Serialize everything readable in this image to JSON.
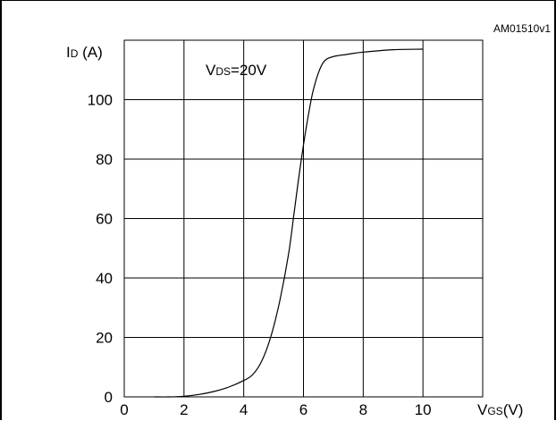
{
  "chart_data": {
    "type": "line",
    "figure_id": "AM01510v1",
    "annotation": "VDS=20V",
    "annotation_parts": {
      "main": "V",
      "sub": "DS",
      "rest": "=20V"
    },
    "ylabel_parts": {
      "main": "I",
      "sub": "D",
      "rest": " (A)"
    },
    "xlabel_parts": {
      "main": "V",
      "sub": "GS",
      "rest": "(V)"
    },
    "xlim": [
      0,
      12
    ],
    "ylim": [
      0,
      120
    ],
    "xticks": [
      0,
      2,
      4,
      6,
      8,
      10
    ],
    "yticks": [
      0,
      20,
      40,
      60,
      80,
      100
    ],
    "grid": true,
    "series": [
      {
        "x": [
          1.0,
          1.5,
          2.0,
          2.5,
          3.0,
          3.5,
          4.0,
          4.3,
          4.6,
          4.9,
          5.2,
          5.5,
          5.7,
          5.9,
          6.1,
          6.3,
          6.5,
          6.7,
          7.0,
          7.5,
          8.0,
          9.0,
          10.0
        ],
        "y": [
          0,
          0,
          0.2,
          0.8,
          1.8,
          3.3,
          5.5,
          7.5,
          12,
          20,
          32,
          48,
          63,
          78,
          91,
          102,
          109,
          113,
          114.5,
          115.3,
          116,
          116.8,
          117
        ]
      }
    ]
  }
}
